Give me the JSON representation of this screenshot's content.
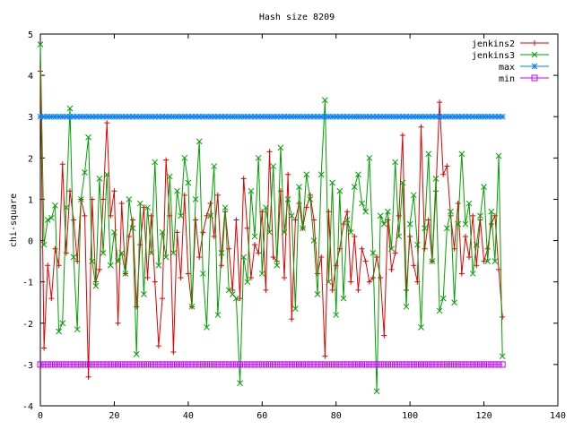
{
  "chart_data": {
    "type": "line",
    "title": "Hash size 8209",
    "xlabel": "",
    "ylabel": "chi-square",
    "xlim": [
      0,
      140
    ],
    "ylim": [
      -4,
      5
    ],
    "xticks": [
      0,
      20,
      40,
      60,
      80,
      100,
      120,
      140
    ],
    "yticks": [
      -4,
      -3,
      -2,
      -1,
      0,
      1,
      2,
      3,
      4,
      5
    ],
    "grid": false,
    "legend_position": "top-right",
    "series": [
      {
        "name": "jenkins2",
        "color": "#e00000",
        "marker": "plus",
        "x": [
          0,
          1,
          2,
          3,
          4,
          5,
          6,
          7,
          8,
          9,
          10,
          11,
          12,
          13,
          14,
          15,
          16,
          17,
          18,
          19,
          20,
          21,
          22,
          23,
          24,
          25,
          26,
          27,
          28,
          29,
          30,
          31,
          32,
          33,
          34,
          35,
          36,
          37,
          38,
          39,
          40,
          41,
          42,
          43,
          44,
          45,
          46,
          47,
          48,
          49,
          50,
          51,
          52,
          53,
          54,
          55,
          56,
          57,
          58,
          59,
          60,
          61,
          62,
          63,
          64,
          65,
          66,
          67,
          68,
          69,
          70,
          71,
          72,
          73,
          74,
          75,
          76,
          77,
          78,
          79,
          80,
          81,
          82,
          83,
          84,
          85,
          86,
          87,
          88,
          89,
          90,
          91,
          92,
          93,
          94,
          95,
          96,
          97,
          98,
          99,
          100,
          101,
          102,
          103,
          104,
          105,
          106,
          107,
          108,
          109,
          110,
          111,
          112,
          113,
          114,
          115,
          116,
          117,
          118,
          119,
          120,
          121,
          122,
          123,
          124,
          125
        ],
        "y": [
          4.1,
          -2.6,
          -0.6,
          -1.4,
          -0.2,
          -0.6,
          1.85,
          -0.3,
          1.2,
          0.5,
          -0.5,
          1.0,
          0.6,
          -3.3,
          1.0,
          -1.0,
          -0.7,
          1.0,
          2.85,
          0.6,
          1.2,
          -2.0,
          0.9,
          -0.8,
          0.1,
          0.5,
          -1.6,
          -0.1,
          0.8,
          -0.9,
          0.6,
          -1.0,
          -2.55,
          -1.4,
          1.95,
          0.6,
          -2.7,
          0.2,
          -0.9,
          1.1,
          -0.8,
          -1.6,
          0.5,
          -0.4,
          0.2,
          0.6,
          0.9,
          0.1,
          1.1,
          -0.6,
          0.7,
          -0.2,
          -1.2,
          0.5,
          -1.4,
          1.5,
          0.3,
          -0.9,
          -0.1,
          -0.3,
          0.7,
          -1.2,
          2.15,
          -0.4,
          -0.5,
          1.2,
          -0.9,
          1.6,
          -1.9,
          0.5,
          0.9,
          0.3,
          0.8,
          1.1,
          0.5,
          -0.8,
          -0.4,
          -2.8,
          0.7,
          -1.2,
          -0.6,
          -0.2,
          0.4,
          0.7,
          -1.0,
          0.1,
          -1.2,
          -0.2,
          -0.5,
          -1.0,
          -0.9,
          -0.4,
          -0.9,
          -2.3,
          0.5,
          -0.7,
          -0.3,
          0.6,
          2.55,
          -1.2,
          0.1,
          -0.6,
          -1.0,
          2.75,
          -0.2,
          0.5,
          -0.5,
          1.2,
          3.35,
          1.6,
          1.8,
          0.6,
          -0.2,
          0.9,
          -0.8,
          0.1,
          -0.4,
          0.6,
          -0.6,
          0.5,
          -0.5,
          -0.2,
          0.4,
          0.6,
          -0.7,
          -1.85
        ]
      },
      {
        "name": "jenkins3",
        "color": "#00a000",
        "marker": "x",
        "x": [
          0,
          1,
          2,
          3,
          4,
          5,
          6,
          7,
          8,
          9,
          10,
          11,
          12,
          13,
          14,
          15,
          16,
          17,
          18,
          19,
          20,
          21,
          22,
          23,
          24,
          25,
          26,
          27,
          28,
          29,
          30,
          31,
          32,
          33,
          34,
          35,
          36,
          37,
          38,
          39,
          40,
          41,
          42,
          43,
          44,
          45,
          46,
          47,
          48,
          49,
          50,
          51,
          52,
          53,
          54,
          55,
          56,
          57,
          58,
          59,
          60,
          61,
          62,
          63,
          64,
          65,
          66,
          67,
          68,
          69,
          70,
          71,
          72,
          73,
          74,
          75,
          76,
          77,
          78,
          79,
          80,
          81,
          82,
          83,
          84,
          85,
          86,
          87,
          88,
          89,
          90,
          91,
          92,
          93,
          94,
          95,
          96,
          97,
          98,
          99,
          100,
          101,
          102,
          103,
          104,
          105,
          106,
          107,
          108,
          109,
          110,
          111,
          112,
          113,
          114,
          115,
          116,
          117,
          118,
          119,
          120,
          121,
          122,
          123,
          124,
          125
        ],
        "y": [
          4.75,
          -0.1,
          0.5,
          0.55,
          0.85,
          -2.2,
          -2.0,
          0.8,
          3.2,
          -0.4,
          -2.15,
          1.0,
          1.65,
          2.5,
          -0.5,
          -1.1,
          1.5,
          -0.3,
          1.6,
          -0.6,
          0.2,
          -0.5,
          -0.3,
          -0.8,
          1.0,
          0.3,
          -2.75,
          0.9,
          -1.3,
          0.8,
          -0.3,
          1.9,
          -0.6,
          0.2,
          -0.4,
          1.55,
          -0.3,
          1.2,
          0.6,
          2.0,
          1.4,
          -1.6,
          1.0,
          2.4,
          -0.8,
          -2.1,
          0.6,
          1.8,
          -1.8,
          -0.3,
          0.8,
          -1.2,
          -1.3,
          -1.4,
          -3.45,
          -0.4,
          -1.0,
          1.2,
          0.1,
          2.0,
          -0.8,
          0.8,
          0.2,
          1.8,
          -0.6,
          2.25,
          0.2,
          1.0,
          0.6,
          -1.65,
          1.3,
          0.3,
          1.6,
          1.0,
          0.0,
          -1.3,
          1.6,
          3.4,
          -1.0,
          1.4,
          -1.8,
          1.2,
          -1.4,
          0.5,
          0.2,
          1.3,
          1.6,
          0.9,
          0.7,
          2.0,
          -0.3,
          -3.65,
          0.6,
          0.4,
          0.7,
          -0.2,
          1.9,
          0.1,
          1.4,
          -1.6,
          0.4,
          1.1,
          -0.1,
          -2.1,
          0.3,
          2.1,
          -0.5,
          1.5,
          -1.7,
          -1.4,
          0.3,
          0.7,
          -1.5,
          0.4,
          2.1,
          0.4,
          0.9,
          -0.8,
          -0.1,
          0.6,
          1.3,
          -0.5,
          0.7,
          -0.5,
          2.05,
          -2.8
        ]
      },
      {
        "name": "max",
        "color": "#0080ff",
        "marker": "star",
        "x_range": [
          0,
          125
        ],
        "y_constant": 3
      },
      {
        "name": "min",
        "color": "#c000ff",
        "marker": "box",
        "x_range": [
          0,
          125
        ],
        "y_constant": -3
      }
    ]
  }
}
